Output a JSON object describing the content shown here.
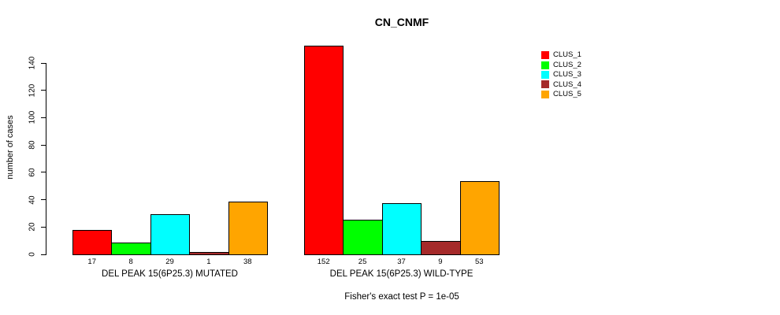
{
  "chart_data": {
    "type": "bar",
    "title": "CN_CNMF",
    "ylabel": "number of cases",
    "xlabel": "",
    "ylim": [
      0,
      152
    ],
    "yticks": [
      0,
      20,
      40,
      60,
      80,
      100,
      120,
      140
    ],
    "grid": false,
    "legend_position": "top-right",
    "bar_value_labels": true,
    "series": [
      {
        "name": "CLUS_1",
        "color": "#FF0000"
      },
      {
        "name": "CLUS_2",
        "color": "#00FF00"
      },
      {
        "name": "CLUS_3",
        "color": "#00FFFF"
      },
      {
        "name": "CLUS_4",
        "color": "#A52A2A"
      },
      {
        "name": "CLUS_5",
        "color": "#FFA500"
      }
    ],
    "groups": [
      {
        "label": "DEL PEAK 15(6P25.3) MUTATED",
        "values": [
          17,
          8,
          29,
          1,
          38
        ]
      },
      {
        "label": "DEL PEAK 15(6P25.3) WILD-TYPE",
        "values": [
          152,
          25,
          37,
          9,
          53
        ]
      }
    ],
    "annotation": "Fisher's exact test P = 1e-05"
  }
}
